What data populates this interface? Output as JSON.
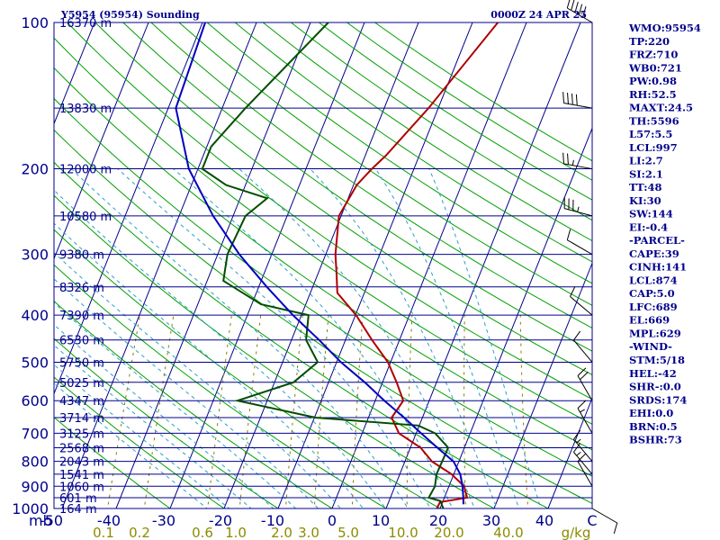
{
  "header": {
    "station": "Y5954 (95954) Sounding",
    "time": "0000Z 24 APR 25"
  },
  "colors": {
    "frame": "#00008b",
    "isotherm": "#00008b",
    "dry_adiabat": "#00a000",
    "moist_adiabat": "#2aa0c8",
    "mixing_ratio": "#8b7d00",
    "temperature": "#b00000",
    "dewpoint": "#004d00",
    "parcel": "#0000c0",
    "wind": "#000000"
  },
  "indices": [
    "WMO:95954",
    "TP:220",
    "FRZ:710",
    "WB0:721",
    "PW:0.98",
    "RH:52.5",
    "MAXT:24.5",
    "TH:5596",
    "L57:5.5",
    "LCL:997",
    "LI:2.7",
    "SI:2.1",
    "TT:48",
    "KI:30",
    "SW:144",
    "EI:-0.4",
    "-PARCEL-",
    "CAPE:39",
    "CINH:141",
    "LCL:874",
    "CAP:5.0",
    "LFC:689",
    "EL:669",
    "MPL:629",
    "-WIND-",
    "STM:5/18",
    "HEL:-42",
    "SHR-:0.0",
    "SRDS:174",
    "EHI:0.0",
    "BRN:0.5",
    "BSHR:73"
  ],
  "chart_data": {
    "type": "line",
    "title": "Y5954 (95954) Sounding",
    "subtitle": "0000Z 24 APR 25",
    "xlabel": "",
    "ylabel": "mb",
    "x_units": "°C",
    "ylim": [
      1000,
      100
    ],
    "xlim": [
      -50,
      50
    ],
    "y_scale": "log",
    "pressure_ticks": [
      100,
      200,
      300,
      400,
      500,
      600,
      700,
      800,
      900,
      1000
    ],
    "temperature_ticks": [
      "-50",
      "-40",
      "-30",
      "-20",
      "-10",
      "0",
      "10",
      "20",
      "30",
      "40",
      "C"
    ],
    "mixing_ratio_labels": [
      "0.1",
      "0.2",
      "0.6",
      "1.0",
      "2.0",
      "3.0",
      "5.0",
      "10.0",
      "20.0",
      "40.0",
      "g/kg"
    ],
    "height_labels": [
      {
        "p": 100,
        "label": "16370 m"
      },
      {
        "p": 150,
        "label": "13830 m"
      },
      {
        "p": 200,
        "label": "12000 m"
      },
      {
        "p": 250,
        "label": "10580 m"
      },
      {
        "p": 300,
        "label": "9380 m"
      },
      {
        "p": 350,
        "label": "8326 m"
      },
      {
        "p": 400,
        "label": "7390 m"
      },
      {
        "p": 450,
        "label": "6530 m"
      },
      {
        "p": 500,
        "label": "5750 m"
      },
      {
        "p": 550,
        "label": "5025 m"
      },
      {
        "p": 600,
        "label": "4347 m"
      },
      {
        "p": 650,
        "label": "3714 m"
      },
      {
        "p": 700,
        "label": "3125 m"
      },
      {
        "p": 750,
        "label": "2568 m"
      },
      {
        "p": 800,
        "label": "2043 m"
      },
      {
        "p": 850,
        "label": "1541 m"
      },
      {
        "p": 900,
        "label": "1060 m"
      },
      {
        "p": 950,
        "label": "601 m"
      },
      {
        "p": 1000,
        "label": "164 m"
      }
    ],
    "series": [
      {
        "name": "temperature",
        "points": [
          [
            -5.3,
            100
          ],
          [
            -11.8,
            150
          ],
          [
            -16.2,
            188
          ],
          [
            -17.8,
            200
          ],
          [
            -19.4,
            216
          ],
          [
            -20.4,
            250
          ],
          [
            -18.2,
            300
          ],
          [
            -16.5,
            330
          ],
          [
            -15.0,
            360
          ],
          [
            -9.9,
            400
          ],
          [
            -5.1,
            450
          ],
          [
            -0.5,
            500
          ],
          [
            2.6,
            550
          ],
          [
            5.2,
            600
          ],
          [
            4.3,
            650
          ],
          [
            6.8,
            700
          ],
          [
            11.9,
            750
          ],
          [
            15.0,
            800
          ],
          [
            19.6,
            850
          ],
          [
            22.8,
            900
          ],
          [
            24.2,
            950
          ],
          [
            19.5,
            970
          ],
          [
            19.4,
            1000
          ]
        ]
      },
      {
        "name": "dewpoint",
        "points": [
          [
            -36.7,
            100
          ],
          [
            -45.7,
            150
          ],
          [
            -49.2,
            180
          ],
          [
            -49.2,
            200
          ],
          [
            -43.6,
            216
          ],
          [
            -35.0,
            230
          ],
          [
            -37.7,
            250
          ],
          [
            -38.2,
            300
          ],
          [
            -37.0,
            340
          ],
          [
            -28.3,
            380
          ],
          [
            -18.7,
            400
          ],
          [
            -17.3,
            450
          ],
          [
            -13.5,
            500
          ],
          [
            -16.5,
            550
          ],
          [
            -25.5,
            600
          ],
          [
            -9.8,
            650
          ],
          [
            9.8,
            675
          ],
          [
            13.5,
            700
          ],
          [
            17.0,
            750
          ],
          [
            16.9,
            800
          ],
          [
            16.8,
            850
          ],
          [
            17.4,
            900
          ],
          [
            17.1,
            950
          ],
          [
            19.5,
            965
          ],
          [
            20.6,
            1000
          ]
        ]
      },
      {
        "name": "parcel",
        "points": [
          [
            -59.5,
            100
          ],
          [
            -58.6,
            150
          ],
          [
            -51.7,
            200
          ],
          [
            -43.7,
            250
          ],
          [
            -36.0,
            300
          ],
          [
            -28.5,
            350
          ],
          [
            -21.6,
            400
          ],
          [
            -14.9,
            450
          ],
          [
            -9.2,
            500
          ],
          [
            -3.3,
            550
          ],
          [
            1.7,
            600
          ],
          [
            6.6,
            650
          ],
          [
            10.9,
            700
          ],
          [
            15.0,
            750
          ],
          [
            19.0,
            800
          ],
          [
            21.2,
            850
          ],
          [
            22.5,
            900
          ],
          [
            23.5,
            950
          ],
          [
            24.0,
            980
          ]
        ]
      }
    ],
    "wind_barbs": [
      {
        "p": 100,
        "dir": 300,
        "speed": 50
      },
      {
        "p": 150,
        "dir": 280,
        "speed": 40
      },
      {
        "p": 200,
        "dir": 280,
        "speed": 25
      },
      {
        "p": 250,
        "dir": 285,
        "speed": 35
      },
      {
        "p": 300,
        "dir": 300,
        "speed": 10
      },
      {
        "p": 400,
        "dir": 310,
        "speed": 10
      },
      {
        "p": 500,
        "dir": 320,
        "speed": 10
      },
      {
        "p": 600,
        "dir": 330,
        "speed": 20
      },
      {
        "p": 700,
        "dir": 330,
        "speed": 15
      },
      {
        "p": 800,
        "dir": 320,
        "speed": 15
      },
      {
        "p": 850,
        "dir": 320,
        "speed": 15
      },
      {
        "p": 900,
        "dir": 330,
        "speed": 10
      },
      {
        "p": 1000,
        "dir": 120,
        "speed": 10
      }
    ]
  }
}
